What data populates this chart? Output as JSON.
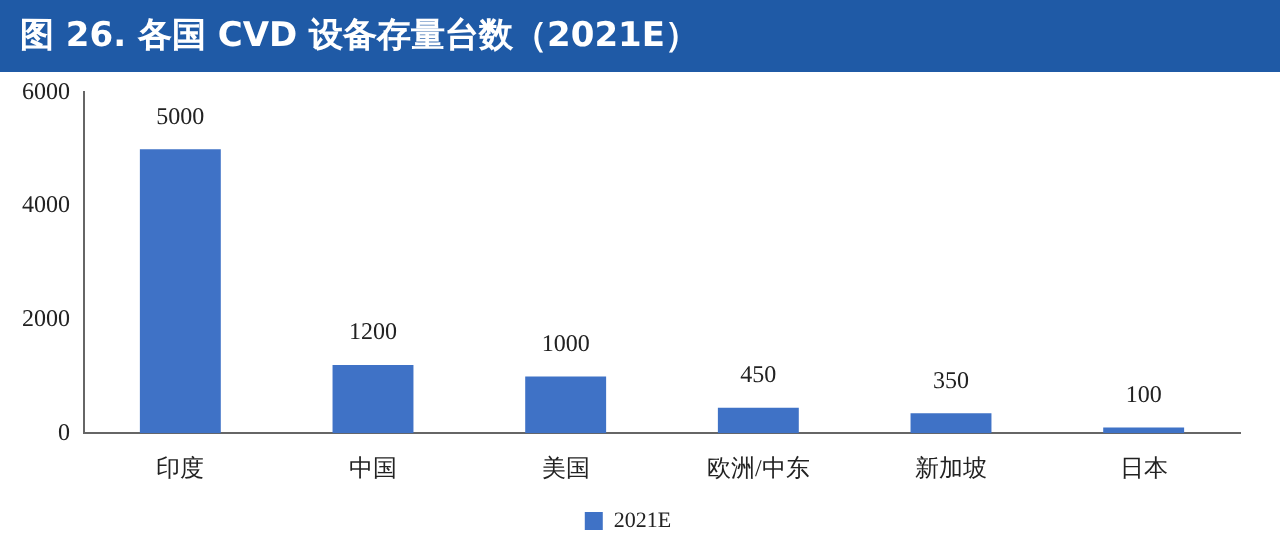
{
  "chart_data": {
    "type": "bar",
    "title": "图 26. 各国 CVD 设备存量台数（2021E）",
    "categories": [
      "印度",
      "中国",
      "美国",
      "欧洲/中东",
      "新加坡",
      "日本"
    ],
    "series": [
      {
        "name": "2021E",
        "color": "#3f72c6",
        "values": [
          5000,
          1200,
          1000,
          450,
          350,
          100
        ]
      }
    ],
    "ylim": [
      0,
      6000
    ],
    "yticks": [
      0,
      2000,
      4000,
      6000
    ],
    "grid": false,
    "legend": "bottom",
    "data_labels": true
  }
}
